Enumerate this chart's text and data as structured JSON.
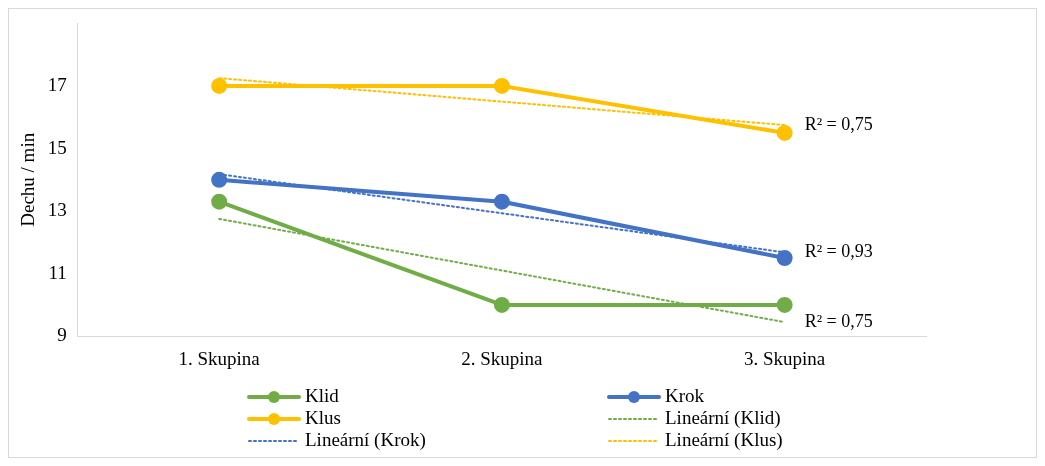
{
  "chart_data": {
    "type": "line",
    "ylabel": "Dechu / min",
    "categories": [
      "1. Skupina",
      "2. Skupina",
      "3. Skupina"
    ],
    "series": [
      {
        "name": "Klid",
        "color": "#70ad47",
        "values": [
          13.3,
          10,
          10
        ],
        "marker": "circle",
        "line_style": "solid"
      },
      {
        "name": "Krok",
        "color": "#4472c4",
        "values": [
          14,
          13.3,
          11.5
        ],
        "marker": "circle",
        "line_style": "solid"
      },
      {
        "name": "Klus",
        "color": "#ffc000",
        "values": [
          17,
          17,
          15.5
        ],
        "marker": "circle",
        "line_style": "solid"
      },
      {
        "name": "Lineární (Klid)",
        "color": "#70ad47",
        "values": [
          12.75,
          11.1,
          9.45
        ],
        "marker": "none",
        "line_style": "dotted"
      },
      {
        "name": "Lineární (Krok)",
        "color": "#4472c4",
        "values": [
          14.18,
          12.93,
          11.68
        ],
        "marker": "none",
        "line_style": "dotted"
      },
      {
        "name": "Lineární (Klus)",
        "color": "#ffc000",
        "values": [
          17.25,
          16.5,
          15.75
        ],
        "marker": "none",
        "line_style": "dotted"
      }
    ],
    "ylim": [
      9,
      19
    ],
    "yticks": [
      9,
      11,
      13,
      15,
      17
    ],
    "grid": false,
    "legend": "bottom",
    "annotations": [
      {
        "text": "R² = 0,75",
        "x": "3. Skupina",
        "y": 15.75
      },
      {
        "text": "R² = 0,93",
        "x": "3. Skupina",
        "y": 11.68
      },
      {
        "text": "R² = 0,75",
        "x": "3. Skupina",
        "y": 9.45
      }
    ]
  }
}
